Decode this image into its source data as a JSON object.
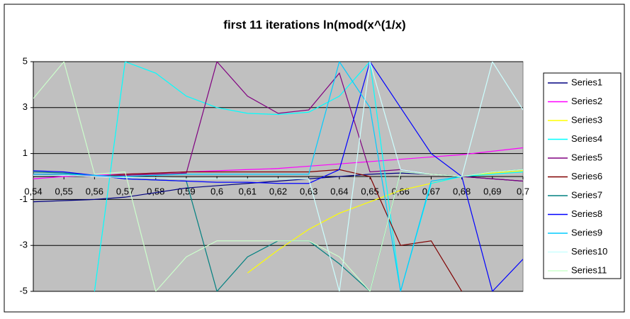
{
  "chart_data": {
    "type": "line",
    "title": "first 11 iterations ln(mod(x^(1/x)",
    "x": [
      0.54,
      0.55,
      0.56,
      0.57,
      0.58,
      0.59,
      0.6,
      0.61,
      0.62,
      0.63,
      0.64,
      0.65,
      0.66,
      0.67,
      0.68,
      0.69,
      0.7
    ],
    "xlim": [
      0.54,
      0.7
    ],
    "xticks": [
      {
        "value": 0.54,
        "label": "0,54"
      },
      {
        "value": 0.55,
        "label": "0,55"
      },
      {
        "value": 0.56,
        "label": "0,56"
      },
      {
        "value": 0.57,
        "label": "0,57"
      },
      {
        "value": 0.58,
        "label": "0,58"
      },
      {
        "value": 0.59,
        "label": "0,59"
      },
      {
        "value": 0.6,
        "label": "0,6"
      },
      {
        "value": 0.61,
        "label": "0,61"
      },
      {
        "value": 0.62,
        "label": "0,62"
      },
      {
        "value": 0.63,
        "label": "0,63"
      },
      {
        "value": 0.64,
        "label": "0,64"
      },
      {
        "value": 0.65,
        "label": "0,65"
      },
      {
        "value": 0.66,
        "label": "0,66"
      },
      {
        "value": 0.67,
        "label": "0,67"
      },
      {
        "value": 0.68,
        "label": "0,68"
      },
      {
        "value": 0.69,
        "label": "0,69"
      },
      {
        "value": 0.7,
        "label": "0,7"
      }
    ],
    "ylim": [
      -5,
      5
    ],
    "yticks": [
      -5,
      -3,
      -1,
      1,
      3,
      5
    ],
    "grid": true,
    "legend": "right",
    "series": [
      {
        "name": "Series1",
        "color": "#000080",
        "values": [
          -1.1,
          -1.05,
          -1.0,
          -0.9,
          -0.7,
          -0.5,
          -0.4,
          -0.3,
          -0.2,
          -0.1,
          0,
          0.1,
          0.15,
          0.1,
          0,
          -0.1,
          -0.2
        ]
      },
      {
        "name": "Series2",
        "color": "#ff00ff",
        "values": [
          -0.1,
          0,
          0.05,
          0.1,
          0.15,
          0.2,
          0.25,
          0.3,
          0.35,
          0.45,
          0.55,
          0.65,
          0.75,
          0.85,
          0.95,
          1.1,
          1.25
        ]
      },
      {
        "name": "Series3",
        "color": "#ffff00",
        "values": [
          null,
          null,
          null,
          null,
          null,
          null,
          null,
          -4.2,
          -3.2,
          -2.3,
          -1.6,
          -1.1,
          -0.6,
          -0.3,
          0,
          0.15,
          0.25
        ]
      },
      {
        "name": "Series4",
        "color": "#00ffff",
        "values": [
          null,
          null,
          -5,
          5,
          4.5,
          3.5,
          3.0,
          2.75,
          2.7,
          2.8,
          3.5,
          5,
          -5,
          -0.3,
          0,
          0.1,
          0.2
        ]
      },
      {
        "name": "Series5",
        "color": "#800080",
        "values": [
          0.1,
          0.05,
          0,
          0.05,
          0.1,
          0.15,
          5,
          3.5,
          2.75,
          2.9,
          4.5,
          0.2,
          0.3,
          0.1,
          0,
          -0.1,
          -0.2
        ]
      },
      {
        "name": "Series6",
        "color": "#800000",
        "values": [
          0.05,
          0.05,
          0,
          0.1,
          0.15,
          0.2,
          0.2,
          0.2,
          0.2,
          0.2,
          0.3,
          0,
          -3,
          -2.8,
          -5,
          null,
          null
        ]
      },
      {
        "name": "Series7",
        "color": "#008080",
        "values": [
          0.2,
          0.15,
          0.05,
          -0.1,
          -0.15,
          -0.2,
          -5,
          -3.5,
          -2.8,
          -2.8,
          -3.8,
          -5,
          0.2,
          0.1,
          0,
          0.2,
          0.3
        ]
      },
      {
        "name": "Series8",
        "color": "#0000ff",
        "values": [
          0.25,
          0.2,
          0.05,
          -0.1,
          -0.15,
          -0.2,
          -0.25,
          -0.25,
          -0.3,
          -0.3,
          0.3,
          5,
          3,
          1,
          0,
          -5,
          -3.6
        ]
      },
      {
        "name": "Series9",
        "color": "#00ccff",
        "values": [
          0.1,
          0.1,
          0.05,
          0,
          0.05,
          0.1,
          0.1,
          0.1,
          0.1,
          0.1,
          5,
          3,
          -5,
          -0.2,
          0,
          0.2,
          0.3
        ]
      },
      {
        "name": "Series10",
        "color": "#ccffff",
        "values": [
          0.05,
          0.05,
          0,
          -0.05,
          -0.05,
          -0.1,
          -0.1,
          -0.1,
          -0.1,
          -0.1,
          -5,
          5,
          0.3,
          0.1,
          0,
          5,
          2.9
        ]
      },
      {
        "name": "Series11",
        "color": "#ccffcc",
        "values": [
          3.4,
          5,
          0.1,
          0.2,
          -5,
          -3.5,
          -2.8,
          -2.8,
          -2.8,
          -2.8,
          -3.5,
          -5,
          0.2,
          0.1,
          0,
          0.2,
          0.3
        ]
      }
    ]
  }
}
